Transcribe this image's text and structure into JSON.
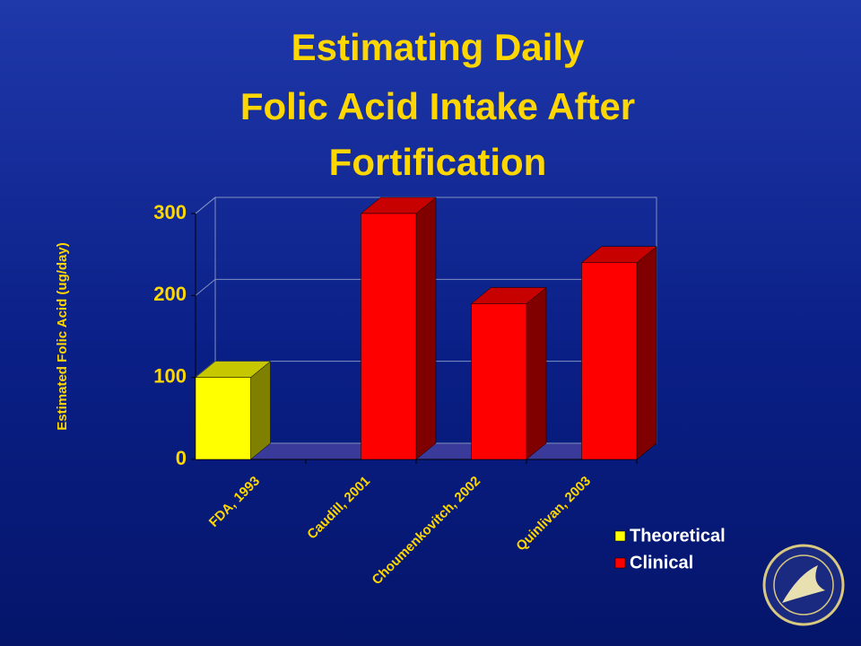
{
  "chart_data": {
    "type": "bar3d",
    "title": [
      "Estimating Daily",
      "Folic Acid Intake After",
      "Fortification"
    ],
    "y_label": "Estimated Folic Acid (ug/day)",
    "categories": [
      "FDA, 1993",
      "Caudill, 2001",
      "Choumenkovitch, 2002",
      "Quinlivan, 2003"
    ],
    "series": [
      {
        "name": "Theoretical",
        "color": "#ffff00",
        "values": [
          100,
          null,
          null,
          null
        ]
      },
      {
        "name": "Clinical",
        "color": "#ff0000",
        "values": [
          null,
          300,
          190,
          240
        ]
      }
    ],
    "ylim": [
      0,
      300
    ],
    "yticks": [
      0,
      100,
      200,
      300
    ],
    "grid": true
  }
}
